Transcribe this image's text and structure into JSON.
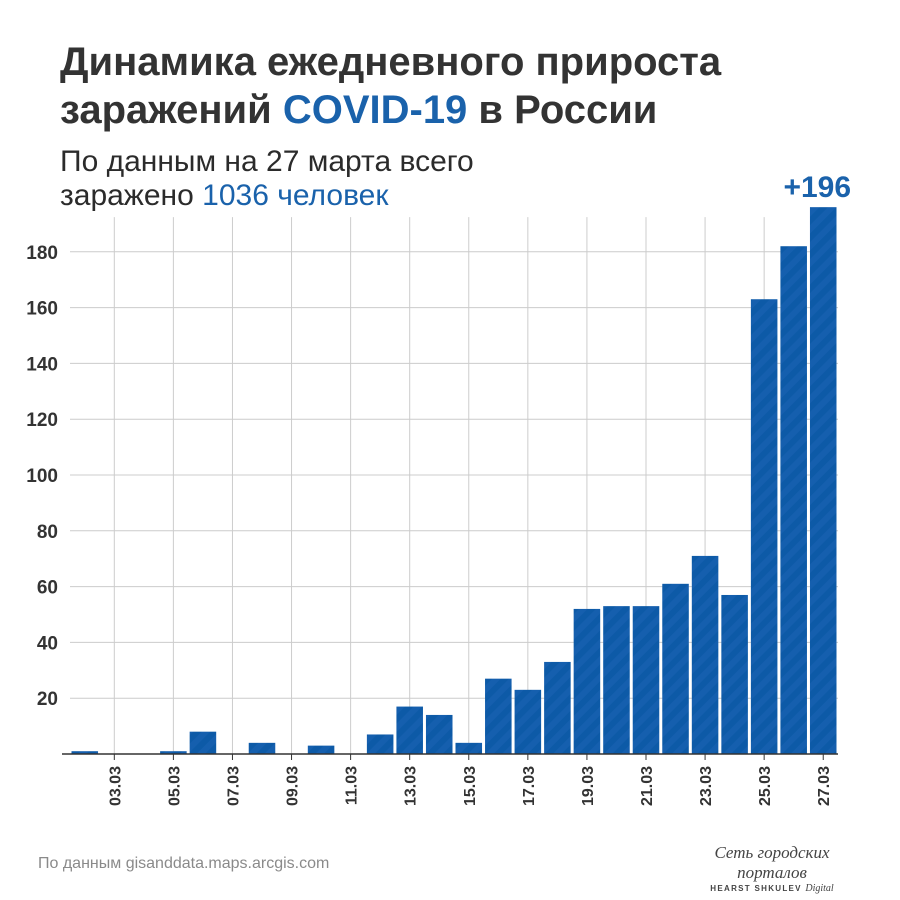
{
  "title": {
    "line1": "Динамика ежедневного прироста",
    "line2_before": "заражений ",
    "line2_accent": "COVID-19",
    "line2_after": " в России"
  },
  "subtitle": {
    "line1": "По данным на 27 марта всего",
    "line2_before": "заражено ",
    "line2_accent": "1036 человек"
  },
  "source": "По данным gisanddata.maps.arcgis.com",
  "logo": {
    "line1": "Сеть городских порталов",
    "line2": "HEARST SHKULEV",
    "line2_italic": "Digital"
  },
  "colors": {
    "bar": "#0d5aa7",
    "accent": "#1a62ab",
    "grid": "#cccccc",
    "axis": "#333333"
  },
  "chart_data": {
    "type": "bar",
    "categories": [
      "02.03",
      "03.03",
      "04.03",
      "05.03",
      "06.03",
      "07.03",
      "08.03",
      "09.03",
      "10.03",
      "11.03",
      "12.03",
      "13.03",
      "14.03",
      "15.03",
      "16.03",
      "17.03",
      "18.03",
      "19.03",
      "20.03",
      "21.03",
      "22.03",
      "23.03",
      "24.03",
      "25.03",
      "26.03",
      "27.03"
    ],
    "tick_labels": [
      "03.03",
      "05.03",
      "07.03",
      "09.03",
      "11.03",
      "13.03",
      "15.03",
      "17.03",
      "19.03",
      "21.03",
      "23.03",
      "25.03",
      "27.03"
    ],
    "values": [
      1,
      0,
      0,
      1,
      8,
      0,
      4,
      0,
      3,
      0,
      7,
      17,
      14,
      4,
      27,
      23,
      33,
      52,
      53,
      53,
      61,
      71,
      57,
      163,
      182,
      196
    ],
    "yticks": [
      20,
      40,
      60,
      80,
      100,
      120,
      140,
      160,
      180
    ],
    "ylim": [
      0,
      196
    ],
    "grid": true,
    "annotation": "+196"
  }
}
